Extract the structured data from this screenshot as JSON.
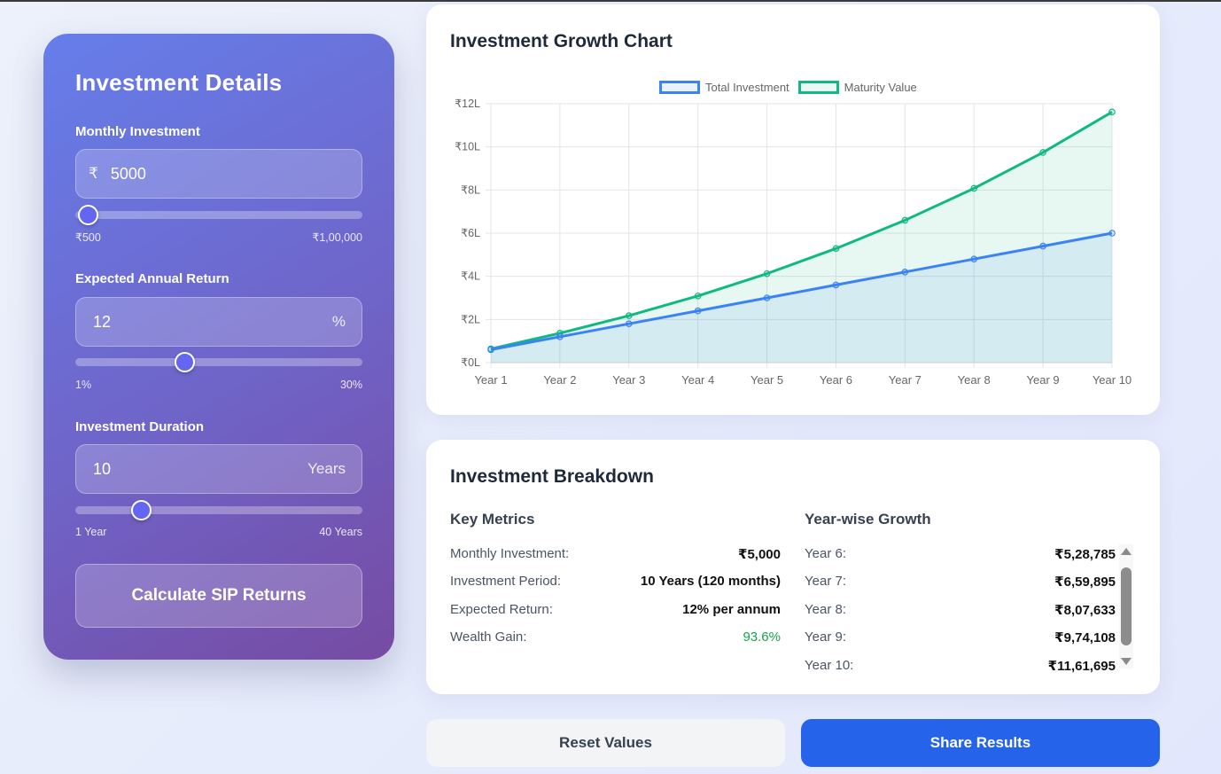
{
  "panel": {
    "title": "Investment Details",
    "monthly": {
      "label": "Monthly Investment",
      "prefix": "₹",
      "value": "5000",
      "min_label": "₹500",
      "max_label": "₹1,00,000",
      "slider_pct": 4.5
    },
    "return": {
      "label": "Expected Annual Return",
      "value": "12",
      "suffix": "%",
      "min_label": "1%",
      "max_label": "30%",
      "slider_pct": 38
    },
    "duration": {
      "label": "Investment Duration",
      "value": "10",
      "suffix": "Years",
      "min_label": "1 Year",
      "max_label": "40 Years",
      "slider_pct": 23
    },
    "calculate_label": "Calculate SIP Returns"
  },
  "chart_card": {
    "title": "Investment Growth Chart"
  },
  "chart_data": {
    "type": "line",
    "title": "Investment Growth Chart",
    "xlabel": "",
    "ylabel": "",
    "categories": [
      "Year 1",
      "Year 2",
      "Year 3",
      "Year 4",
      "Year 5",
      "Year 6",
      "Year 7",
      "Year 8",
      "Year 9",
      "Year 10"
    ],
    "series": [
      {
        "name": "Total Investment",
        "color": "#3b82f6",
        "fill": "rgba(59,130,246,0.1)",
        "values": [
          60000,
          120000,
          180000,
          240000,
          300000,
          360000,
          420000,
          480000,
          540000,
          600000
        ]
      },
      {
        "name": "Maturity Value",
        "color": "#10b981",
        "fill": "rgba(16,185,129,0.1)",
        "values": [
          64047,
          136216,
          217538,
          309174,
          412432,
          528785,
          659895,
          807633,
          974108,
          1161695
        ]
      }
    ],
    "y_ticks": [
      "₹0L",
      "₹2L",
      "₹4L",
      "₹6L",
      "₹8L",
      "₹10L",
      "₹12L"
    ],
    "ylim": [
      0,
      1200000
    ],
    "grid": true,
    "legend_position": "top"
  },
  "breakdown": {
    "title": "Investment Breakdown",
    "key_metrics": {
      "title": "Key Metrics",
      "rows": [
        {
          "label": "Monthly Investment:",
          "value": "₹5,000"
        },
        {
          "label": "Investment Period:",
          "value": "10 Years (120 months)"
        },
        {
          "label": "Expected Return:",
          "value": "12% per annum"
        },
        {
          "label": "Wealth Gain:",
          "value": "93.6%"
        }
      ]
    },
    "yearwise": {
      "title": "Year-wise Growth",
      "rows": [
        {
          "label": "Year 6:",
          "value": "₹5,28,785"
        },
        {
          "label": "Year 7:",
          "value": "₹6,59,895"
        },
        {
          "label": "Year 8:",
          "value": "₹8,07,633"
        },
        {
          "label": "Year 9:",
          "value": "₹9,74,108"
        },
        {
          "label": "Year 10:",
          "value": "₹11,61,695"
        }
      ]
    }
  },
  "actions": {
    "reset_label": "Reset Values",
    "share_label": "Share Results"
  },
  "colors": {
    "accent": "#6366f1",
    "primary_button": "#2563eb",
    "gain_green": "#16a34a"
  }
}
